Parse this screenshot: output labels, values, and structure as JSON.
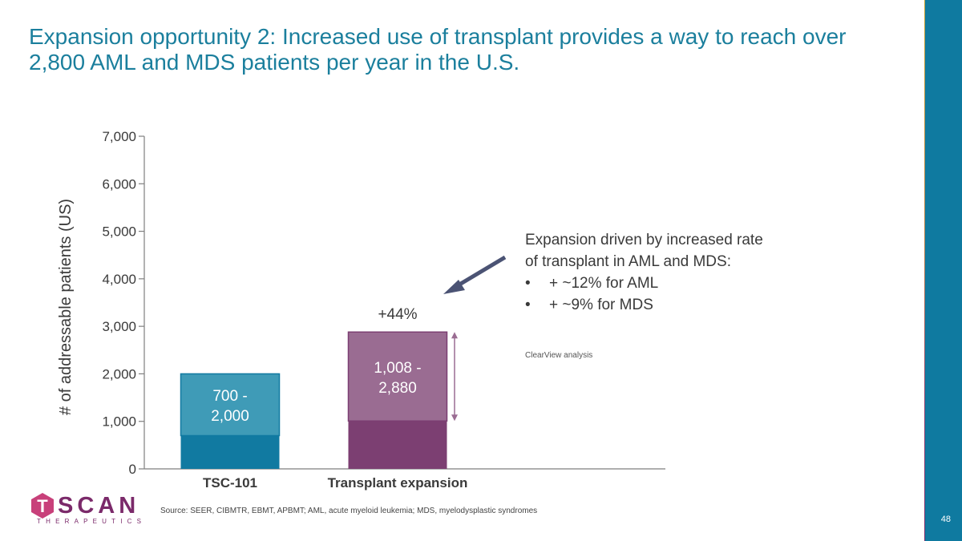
{
  "title": "Expansion opportunity 2: Increased use of transplant provides a way to reach over 2,800 AML and MDS patients per year in the U.S.",
  "page_number": "48",
  "colors": {
    "title": "#1b7f9d",
    "tsc_base": "#117aa1",
    "tsc_top": "#3f9bb7",
    "tx_base": "#7c3f72",
    "tx_top": "#9a6c92",
    "arrow": "#4b5374",
    "range_arrow": "#9a6c92",
    "axis": "#7f7f7f",
    "text": "#3a3a3a"
  },
  "chart_data": {
    "type": "bar",
    "categories": [
      "TSC-101",
      "Transplant expansion"
    ],
    "ylabel": "# of addressable patients (US)",
    "ylim": [
      0,
      7000
    ],
    "yticks": [
      0,
      1000,
      2000,
      3000,
      4000,
      5000,
      6000,
      7000
    ],
    "ytick_labels": [
      "0",
      "1,000",
      "2,000",
      "3,000",
      "4,000",
      "5,000",
      "6,000",
      "7,000"
    ],
    "bars": [
      {
        "category": "TSC-101",
        "low": 700,
        "high": 2000,
        "label": "700 - 2,000"
      },
      {
        "category": "Transplant expansion",
        "low": 1008,
        "high": 2880,
        "label": "1,008 - 2,880"
      }
    ],
    "annotations": [
      "+44%"
    ]
  },
  "annotation": {
    "heading": "Expansion driven by increased rate of transplant in AML and MDS:",
    "bullets": [
      "+ ~12% for AML",
      "+ ~9% for MDS"
    ],
    "source": "ClearView analysis"
  },
  "logo": {
    "letters": "SCAN",
    "mark_letter": "T",
    "subtitle": "THERAPEUTICS"
  },
  "source": "Source: SEER, CIBMTR, EBMT, APBMT; AML, acute myeloid leukemia; MDS, myelodysplastic syndromes"
}
